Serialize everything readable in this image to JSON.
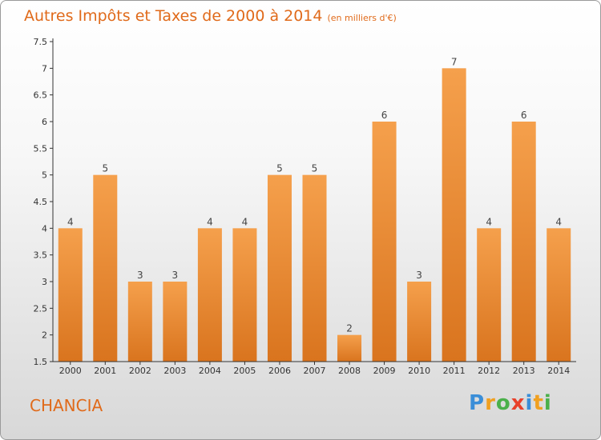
{
  "chart_data": {
    "type": "bar",
    "title": "Autres Impôts et Taxes de 2000 à 2014",
    "subtitle": "(en milliers d'€)",
    "categories": [
      "2000",
      "2001",
      "2002",
      "2003",
      "2004",
      "2005",
      "2006",
      "2007",
      "2008",
      "2009",
      "2010",
      "2011",
      "2012",
      "2013",
      "2014"
    ],
    "values": [
      4,
      5,
      3,
      3,
      4,
      4,
      5,
      5,
      2,
      6,
      3,
      7,
      4,
      6,
      4
    ],
    "ylim": [
      1.5,
      7.5
    ],
    "yticks": [
      "1.5",
      "2",
      "2.5",
      "3",
      "3.5",
      "4",
      "4.5",
      "5",
      "5.5",
      "6",
      "6.5",
      "7",
      "7.5"
    ],
    "grid": false,
    "bar_color_top": "#f5a04c",
    "bar_color_bottom": "#d9741e"
  },
  "footer": {
    "place": "CHANCIA",
    "logo": "Proxiti"
  },
  "colors": {
    "accent": "#e06a1a"
  }
}
